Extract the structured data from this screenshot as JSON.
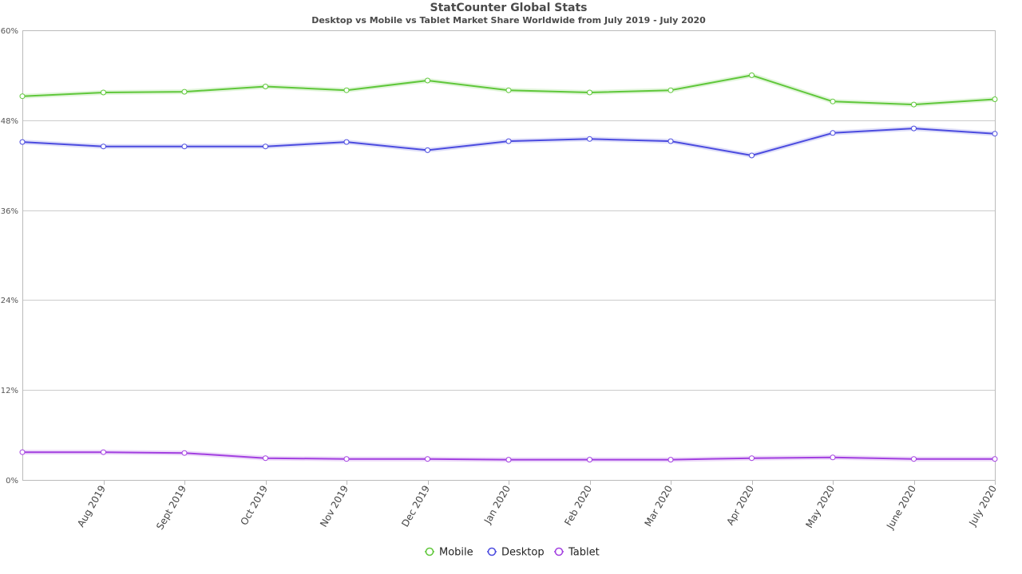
{
  "chart_data": {
    "type": "line",
    "title": "StatCounter Global Stats",
    "subtitle": "Desktop vs Mobile vs Tablet Market Share Worldwide from July 2019 - July 2020",
    "x": [
      "July 2019",
      "Aug 2019",
      "Sept 2019",
      "Oct 2019",
      "Nov 2019",
      "Dec 2019",
      "Jan 2020",
      "Feb 2020",
      "Mar 2020",
      "Apr 2020",
      "May 2020",
      "June 2020",
      "July 2020"
    ],
    "x_tick_labels": [
      "Aug 2019",
      "Sept 2019",
      "Oct 2019",
      "Nov 2019",
      "Dec 2019",
      "Jan 2020",
      "Feb 2020",
      "Mar 2020",
      "Apr 2020",
      "May 2020",
      "June 2020",
      "July 2020"
    ],
    "ylim": [
      0,
      60
    ],
    "y_ticks": [
      0,
      12,
      24,
      36,
      48,
      60
    ],
    "y_tick_labels": [
      "0%",
      "12%",
      "24%",
      "36%",
      "48%",
      "60%"
    ],
    "grid": true,
    "legend_position": "bottom-center",
    "series": [
      {
        "name": "Mobile",
        "color": "#5fc73a",
        "values": [
          51.2,
          51.7,
          51.8,
          52.5,
          52.0,
          53.3,
          52.0,
          51.7,
          52.0,
          54.0,
          50.5,
          50.1,
          50.8
        ]
      },
      {
        "name": "Desktop",
        "color": "#4b4bdf",
        "values": [
          45.1,
          44.5,
          44.5,
          44.5,
          45.1,
          44.0,
          45.2,
          45.5,
          45.2,
          43.3,
          46.3,
          46.9,
          46.2
        ]
      },
      {
        "name": "Tablet",
        "color": "#a23fe0",
        "values": [
          3.7,
          3.7,
          3.6,
          2.9,
          2.8,
          2.8,
          2.7,
          2.7,
          2.7,
          2.9,
          3.0,
          2.8,
          2.8
        ]
      }
    ]
  }
}
